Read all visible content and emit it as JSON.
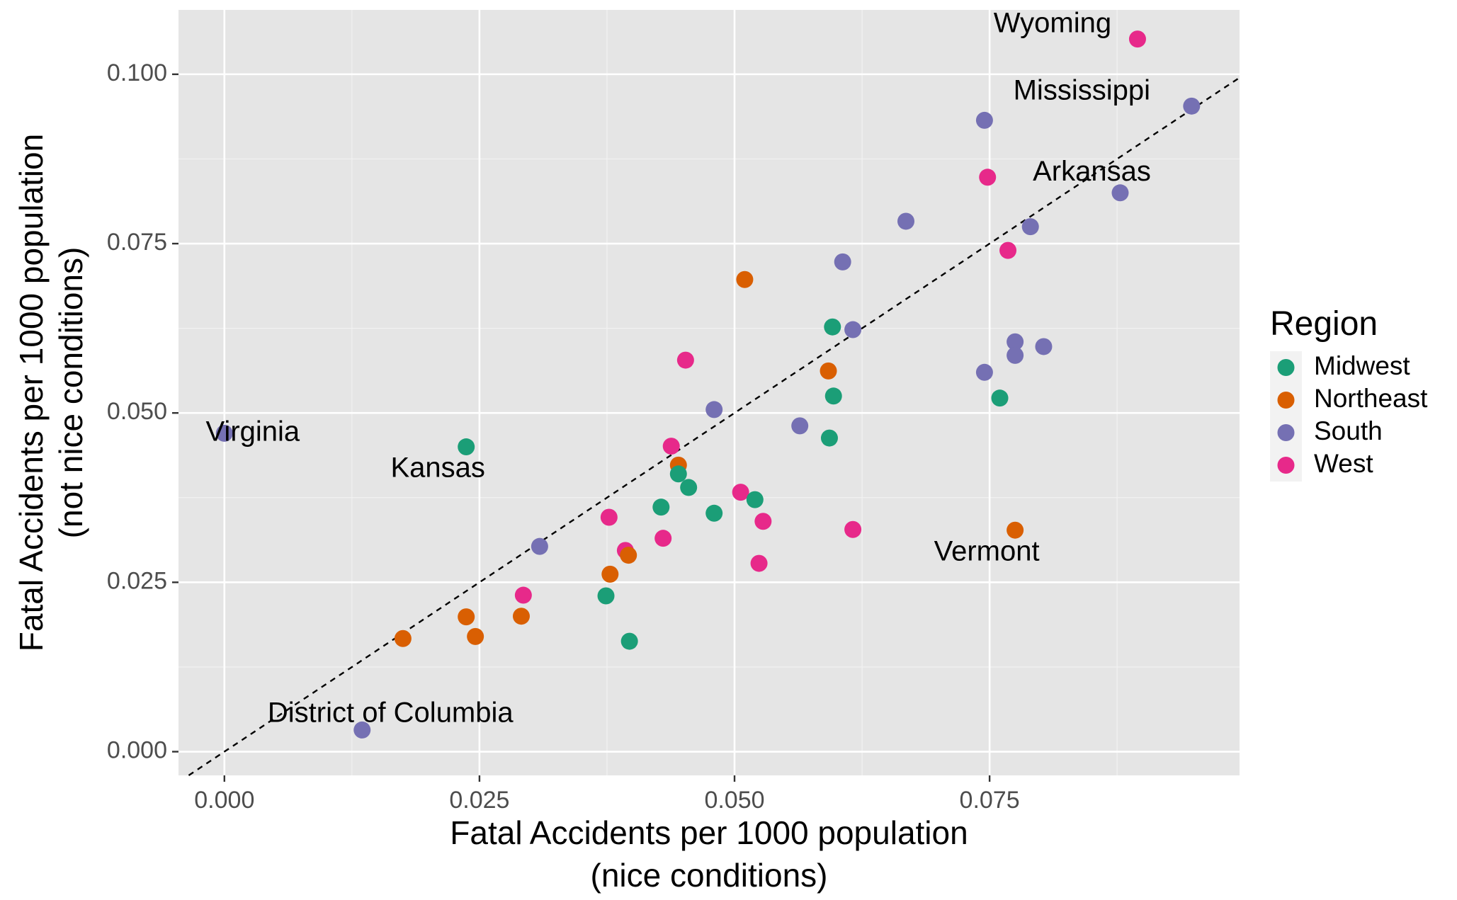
{
  "chart_data": {
    "type": "scatter",
    "title": "",
    "xlabel": [
      "Fatal Accidents per 1000 population",
      "(nice conditions)"
    ],
    "ylabel": [
      "Fatal Accidents per 1000 population",
      "(not nice conditions)"
    ],
    "xlim": [
      -0.0045,
      0.0995
    ],
    "ylim": [
      -0.0035,
      0.1095
    ],
    "x_ticks": [
      0.0,
      0.025,
      0.05,
      0.075
    ],
    "x_tick_labels": [
      "0.000",
      "0.025",
      "0.050",
      "0.075"
    ],
    "y_ticks": [
      0.0,
      0.025,
      0.05,
      0.075,
      0.1
    ],
    "y_tick_labels": [
      "0.000",
      "0.025",
      "0.050",
      "0.075",
      "0.100"
    ],
    "grid": true,
    "reference_line": {
      "type": "y=x",
      "style": "dashed"
    },
    "legend": {
      "title": "Region",
      "placement": "right",
      "entries": [
        {
          "name": "Midwest",
          "color": "#1b9e77"
        },
        {
          "name": "Northeast",
          "color": "#d95f02"
        },
        {
          "name": "South",
          "color": "#7570b3"
        },
        {
          "name": "West",
          "color": "#e7298a"
        }
      ]
    },
    "points": [
      {
        "x": 0.0895,
        "y": 0.1052,
        "region": "West",
        "label": "Wyoming"
      },
      {
        "x": 0.0948,
        "y": 0.0953,
        "region": "South",
        "label": "Mississippi"
      },
      {
        "x": 0.0878,
        "y": 0.0825,
        "region": "South",
        "label": "Arkansas"
      },
      {
        "x": 0.0,
        "y": 0.047,
        "region": "South",
        "label": "Virginia"
      },
      {
        "x": 0.0237,
        "y": 0.045,
        "region": "Midwest",
        "label": "Kansas"
      },
      {
        "x": 0.0775,
        "y": 0.0327,
        "region": "Northeast",
        "label": "Vermont"
      },
      {
        "x": 0.0135,
        "y": 0.0032,
        "region": "South",
        "label": "District of Columbia"
      },
      {
        "x": 0.0745,
        "y": 0.0932,
        "region": "South"
      },
      {
        "x": 0.0748,
        "y": 0.0848,
        "region": "West"
      },
      {
        "x": 0.0668,
        "y": 0.0783,
        "region": "South"
      },
      {
        "x": 0.079,
        "y": 0.0775,
        "region": "South"
      },
      {
        "x": 0.0768,
        "y": 0.074,
        "region": "West"
      },
      {
        "x": 0.0606,
        "y": 0.0723,
        "region": "South"
      },
      {
        "x": 0.051,
        "y": 0.0697,
        "region": "Northeast"
      },
      {
        "x": 0.0596,
        "y": 0.0627,
        "region": "Midwest"
      },
      {
        "x": 0.0616,
        "y": 0.0623,
        "region": "South"
      },
      {
        "x": 0.0775,
        "y": 0.0605,
        "region": "South"
      },
      {
        "x": 0.0803,
        "y": 0.0598,
        "region": "South"
      },
      {
        "x": 0.0775,
        "y": 0.0585,
        "region": "South"
      },
      {
        "x": 0.0452,
        "y": 0.0578,
        "region": "West"
      },
      {
        "x": 0.0592,
        "y": 0.0562,
        "region": "Northeast"
      },
      {
        "x": 0.0745,
        "y": 0.056,
        "region": "South"
      },
      {
        "x": 0.0597,
        "y": 0.0525,
        "region": "Midwest"
      },
      {
        "x": 0.076,
        "y": 0.0522,
        "region": "Midwest"
      },
      {
        "x": 0.048,
        "y": 0.0505,
        "region": "South"
      },
      {
        "x": 0.0564,
        "y": 0.0481,
        "region": "South"
      },
      {
        "x": 0.0593,
        "y": 0.0463,
        "region": "Midwest"
      },
      {
        "x": 0.0438,
        "y": 0.0451,
        "region": "West"
      },
      {
        "x": 0.0445,
        "y": 0.0423,
        "region": "Northeast"
      },
      {
        "x": 0.0445,
        "y": 0.041,
        "region": "Midwest"
      },
      {
        "x": 0.0455,
        "y": 0.039,
        "region": "Midwest"
      },
      {
        "x": 0.0506,
        "y": 0.0383,
        "region": "West"
      },
      {
        "x": 0.052,
        "y": 0.0372,
        "region": "Midwest"
      },
      {
        "x": 0.0428,
        "y": 0.0361,
        "region": "Midwest"
      },
      {
        "x": 0.048,
        "y": 0.0352,
        "region": "Midwest"
      },
      {
        "x": 0.0377,
        "y": 0.0346,
        "region": "West"
      },
      {
        "x": 0.0528,
        "y": 0.034,
        "region": "West"
      },
      {
        "x": 0.0616,
        "y": 0.0328,
        "region": "West"
      },
      {
        "x": 0.043,
        "y": 0.0315,
        "region": "West"
      },
      {
        "x": 0.0309,
        "y": 0.0303,
        "region": "South"
      },
      {
        "x": 0.0393,
        "y": 0.0297,
        "region": "West"
      },
      {
        "x": 0.0396,
        "y": 0.029,
        "region": "Northeast"
      },
      {
        "x": 0.0524,
        "y": 0.0278,
        "region": "West"
      },
      {
        "x": 0.0378,
        "y": 0.0262,
        "region": "Northeast"
      },
      {
        "x": 0.0293,
        "y": 0.0231,
        "region": "West"
      },
      {
        "x": 0.0374,
        "y": 0.023,
        "region": "Midwest"
      },
      {
        "x": 0.0237,
        "y": 0.0199,
        "region": "Northeast"
      },
      {
        "x": 0.0291,
        "y": 0.02,
        "region": "Northeast"
      },
      {
        "x": 0.0175,
        "y": 0.0167,
        "region": "Northeast"
      },
      {
        "x": 0.0246,
        "y": 0.017,
        "region": "Northeast"
      },
      {
        "x": 0.0397,
        "y": 0.0163,
        "region": "Midwest"
      }
    ]
  }
}
